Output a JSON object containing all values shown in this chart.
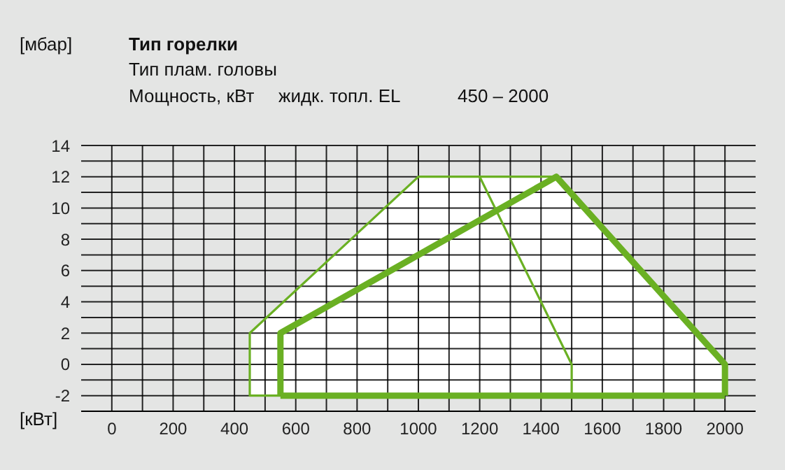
{
  "chart_data": {
    "type": "line",
    "title": "Тип горелки",
    "ylabel": "[мбар]",
    "xlabel": "[кВт]",
    "annotations": [
      "Тип плам. головы",
      "Мощность, кВт",
      "жидк. топл. EL",
      "450 – 2000"
    ],
    "xlim": [
      -100,
      2100
    ],
    "ylim": [
      -3,
      14
    ],
    "xticks": [
      0,
      {
        "value": 100,
        "label": null
      },
      200,
      {
        "value": 300,
        "label": null
      },
      400,
      {
        "value": 500,
        "label": null
      },
      600,
      {
        "value": 700,
        "label": null
      },
      800,
      {
        "value": 900,
        "label": null
      },
      1000,
      {
        "value": 1100,
        "label": null
      },
      1200,
      {
        "value": 1300,
        "label": null
      },
      1400,
      {
        "value": 1500,
        "label": null
      },
      1600,
      {
        "value": 1700,
        "label": null
      },
      1800,
      {
        "value": 1900,
        "label": null
      },
      2000
    ],
    "yticks": [
      -2,
      {
        "value": -1,
        "label": null
      },
      0,
      {
        "value": 1,
        "label": null
      },
      2,
      {
        "value": 3,
        "label": null
      },
      4,
      {
        "value": 5,
        "label": null
      },
      6,
      {
        "value": 7,
        "label": null
      },
      8,
      {
        "value": 9,
        "label": null
      },
      10,
      {
        "value": 11,
        "label": null
      },
      12,
      {
        "value": 13,
        "label": null
      },
      14
    ],
    "grid": true,
    "marker": "none",
    "line_style": "solid",
    "series": [
      {
        "color": "#6ab023",
        "x": [
          550,
          450,
          450,
          1000,
          1450
        ],
        "values": [
          -2,
          -2,
          2,
          12,
          12
        ]
      },
      {
        "color": "#6ab023",
        "x": [
          1200,
          1500,
          1500
        ],
        "values": [
          12,
          0,
          -2
        ]
      },
      {
        "color": "#6ab023",
        "x": [
          550,
          550,
          1450,
          2000,
          2000
        ],
        "values": [
          -2,
          2,
          12,
          0,
          -2
        ]
      },
      {
        "color": "#6ab023",
        "x": [
          550,
          2000
        ],
        "values": [
          -2,
          -2
        ]
      }
    ]
  }
}
